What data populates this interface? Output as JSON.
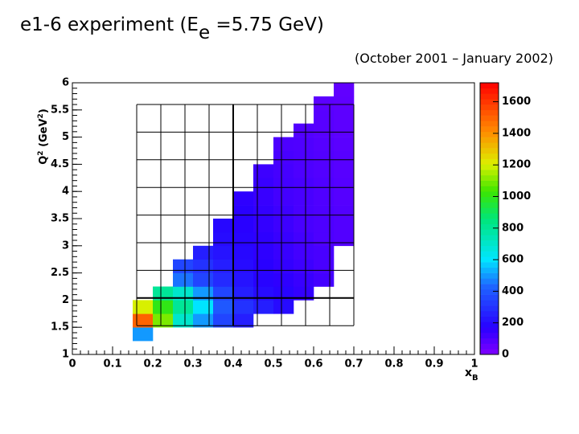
{
  "chart_data": {
    "type": "heatmap",
    "title": {
      "main": "e1-6 experiment (E",
      "sub": "e",
      "rest": " =5.75 GeV)"
    },
    "subtitle": "(October 2001 – January 2002)",
    "x_label": {
      "main": "x",
      "sub": "B"
    },
    "y_label": {
      "main": "Q",
      "sup": "2",
      "mid": " (GeV",
      "sup2": "2",
      "end": ")"
    },
    "xlim": [
      0,
      1
    ],
    "xticks": [
      0,
      0.1,
      0.2,
      0.3,
      0.4,
      0.5,
      0.6,
      0.7,
      0.8,
      0.9,
      1
    ],
    "ylim": [
      1,
      6
    ],
    "yticks": [
      1,
      1.5,
      2,
      2.5,
      3,
      3.5,
      4,
      4.5,
      5,
      5.5,
      6
    ],
    "zlim": [
      0,
      1720
    ],
    "zticks": [
      0,
      200,
      400,
      600,
      800,
      1000,
      1200,
      1400,
      1600
    ],
    "x_edges": [
      0.15,
      0.2,
      0.25,
      0.3,
      0.35,
      0.4,
      0.45,
      0.5,
      0.55,
      0.6,
      0.65,
      0.7,
      0.75
    ],
    "y_edges": [
      1.25,
      1.5,
      1.75,
      2.0,
      2.25,
      2.5,
      2.75,
      3.0,
      3.25,
      3.5,
      3.75,
      4.0,
      4.25,
      4.5,
      4.75,
      5.0,
      5.25,
      5.5,
      5.75,
      6.0
    ],
    "z": [
      [
        500,
        null,
        null,
        null,
        null,
        null,
        null,
        null,
        null,
        null,
        null,
        null
      ],
      [
        1500,
        1100,
        700,
        500,
        350,
        250,
        null,
        null,
        null,
        null,
        null,
        null
      ],
      [
        1200,
        1000,
        800,
        600,
        400,
        300,
        250,
        200,
        null,
        null,
        null,
        null
      ],
      [
        null,
        800,
        700,
        500,
        350,
        250,
        200,
        180,
        150,
        null,
        null,
        null
      ],
      [
        null,
        null,
        450,
        350,
        280,
        220,
        180,
        160,
        140,
        120,
        null,
        null
      ],
      [
        null,
        null,
        350,
        300,
        250,
        200,
        170,
        150,
        130,
        110,
        null,
        null
      ],
      [
        null,
        null,
        null,
        250,
        220,
        190,
        160,
        140,
        120,
        110,
        null,
        null
      ],
      [
        null,
        null,
        null,
        null,
        200,
        180,
        160,
        140,
        120,
        100,
        90,
        null
      ],
      [
        null,
        null,
        null,
        null,
        190,
        170,
        150,
        130,
        110,
        100,
        90,
        null
      ],
      [
        null,
        null,
        null,
        null,
        null,
        170,
        150,
        130,
        110,
        100,
        90,
        null
      ],
      [
        null,
        null,
        null,
        null,
        null,
        160,
        140,
        120,
        110,
        95,
        85,
        null
      ],
      [
        null,
        null,
        null,
        null,
        null,
        null,
        140,
        120,
        110,
        95,
        85,
        null
      ],
      [
        null,
        null,
        null,
        null,
        null,
        null,
        130,
        115,
        100,
        90,
        80,
        null
      ],
      [
        null,
        null,
        null,
        null,
        null,
        null,
        null,
        110,
        100,
        90,
        80,
        null
      ],
      [
        null,
        null,
        null,
        null,
        null,
        null,
        null,
        100,
        95,
        85,
        75,
        null
      ],
      [
        null,
        null,
        null,
        null,
        null,
        null,
        null,
        null,
        90,
        80,
        70,
        null
      ],
      [
        null,
        null,
        null,
        null,
        null,
        null,
        null,
        null,
        null,
        80,
        70,
        null
      ],
      [
        null,
        null,
        null,
        null,
        null,
        null,
        null,
        null,
        null,
        70,
        65,
        null
      ],
      [
        null,
        null,
        null,
        null,
        null,
        null,
        null,
        null,
        null,
        null,
        60,
        null
      ]
    ]
  }
}
